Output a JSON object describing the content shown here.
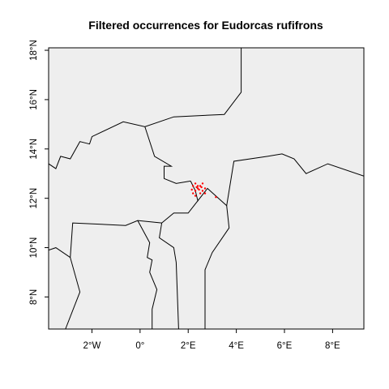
{
  "title": "Filtered occurrences for Eudorcas rufifrons",
  "axes": {
    "x_range_deg": [
      -3.8,
      9.3
    ],
    "y_range_deg": [
      6.7,
      18.1
    ],
    "x_ticks": [
      {
        "value": -2,
        "label": "2°W"
      },
      {
        "value": 0,
        "label": "0°"
      },
      {
        "value": 2,
        "label": "2°E"
      },
      {
        "value": 4,
        "label": "4°E"
      },
      {
        "value": 6,
        "label": "6°E"
      },
      {
        "value": 8,
        "label": "8°E"
      }
    ],
    "y_ticks": [
      {
        "value": 8,
        "label": "8°N"
      },
      {
        "value": 10,
        "label": "10°N"
      },
      {
        "value": 12,
        "label": "12°N"
      },
      {
        "value": 14,
        "label": "14°N"
      },
      {
        "value": 16,
        "label": "16°N"
      },
      {
        "value": 18,
        "label": "18°N"
      }
    ]
  },
  "colors": {
    "land": "#eeeeee",
    "border": "#000000",
    "point": "#ff0000"
  },
  "borders": [
    [
      [
        -3.8,
        13.4
      ],
      [
        -3.5,
        13.2
      ],
      [
        -3.3,
        13.7
      ],
      [
        -2.9,
        13.6
      ],
      [
        -2.5,
        14.3
      ],
      [
        -2.1,
        14.2
      ],
      [
        -2.0,
        14.5
      ],
      [
        -0.7,
        15.1
      ],
      [
        0.2,
        14.9
      ],
      [
        1.4,
        15.3
      ],
      [
        3.5,
        15.4
      ],
      [
        4.2,
        16.3
      ],
      [
        4.2,
        18.1
      ]
    ],
    [
      [
        0.2,
        14.9
      ],
      [
        0.6,
        13.7
      ],
      [
        1.3,
        13.3
      ],
      [
        1.0,
        13.3
      ],
      [
        1.0,
        12.8
      ],
      [
        1.5,
        12.6
      ],
      [
        2.1,
        12.7
      ]
    ],
    [
      [
        2.1,
        12.7
      ],
      [
        2.3,
        12.3
      ],
      [
        2.4,
        11.9
      ],
      [
        2.8,
        12.4
      ],
      [
        3.6,
        11.7
      ],
      [
        3.9,
        13.5
      ],
      [
        5.3,
        13.7
      ],
      [
        5.9,
        13.8
      ],
      [
        6.4,
        13.6
      ],
      [
        6.9,
        13.0
      ],
      [
        7.8,
        13.4
      ],
      [
        9.3,
        12.9
      ]
    ],
    [
      [
        3.6,
        11.7
      ],
      [
        3.7,
        10.8
      ],
      [
        3.0,
        9.8
      ],
      [
        2.7,
        9.1
      ],
      [
        2.7,
        6.7
      ]
    ],
    [
      [
        2.4,
        11.9
      ],
      [
        2.0,
        11.4
      ],
      [
        1.4,
        11.4
      ],
      [
        0.9,
        11.0
      ],
      [
        0.8,
        10.4
      ],
      [
        1.4,
        10.0
      ],
      [
        1.5,
        9.4
      ],
      [
        1.6,
        6.7
      ]
    ],
    [
      [
        0.9,
        11.0
      ],
      [
        -0.1,
        11.1
      ],
      [
        -0.6,
        10.9
      ],
      [
        -2.8,
        11.0
      ],
      [
        -2.9,
        9.6
      ],
      [
        -2.5,
        8.2
      ],
      [
        -3.1,
        6.7
      ]
    ],
    [
      [
        -0.1,
        11.1
      ],
      [
        0.4,
        10.2
      ],
      [
        0.3,
        9.6
      ],
      [
        0.5,
        9.5
      ],
      [
        0.4,
        9.0
      ],
      [
        0.7,
        8.3
      ],
      [
        0.5,
        7.5
      ],
      [
        0.5,
        6.7
      ]
    ],
    [
      [
        -3.8,
        9.9
      ],
      [
        -3.5,
        10.0
      ],
      [
        -2.9,
        9.6
      ]
    ]
  ],
  "occurrences": [
    [
      2.2,
      12.5
    ],
    [
      2.3,
      12.6
    ],
    [
      2.4,
      12.4
    ],
    [
      2.3,
      12.3
    ],
    [
      2.5,
      12.2
    ],
    [
      2.2,
      12.2
    ],
    [
      2.6,
      12.3
    ],
    [
      2.4,
      12.5
    ],
    [
      2.5,
      12.5
    ],
    [
      2.7,
      12.4
    ],
    [
      2.6,
      12.6
    ],
    [
      2.3,
      12.1
    ],
    [
      2.45,
      12.35
    ],
    [
      2.35,
      12.45
    ],
    [
      2.55,
      12.45
    ],
    [
      2.15,
      12.35
    ],
    [
      2.7,
      12.2
    ],
    [
      3.15,
      12.05
    ]
  ]
}
